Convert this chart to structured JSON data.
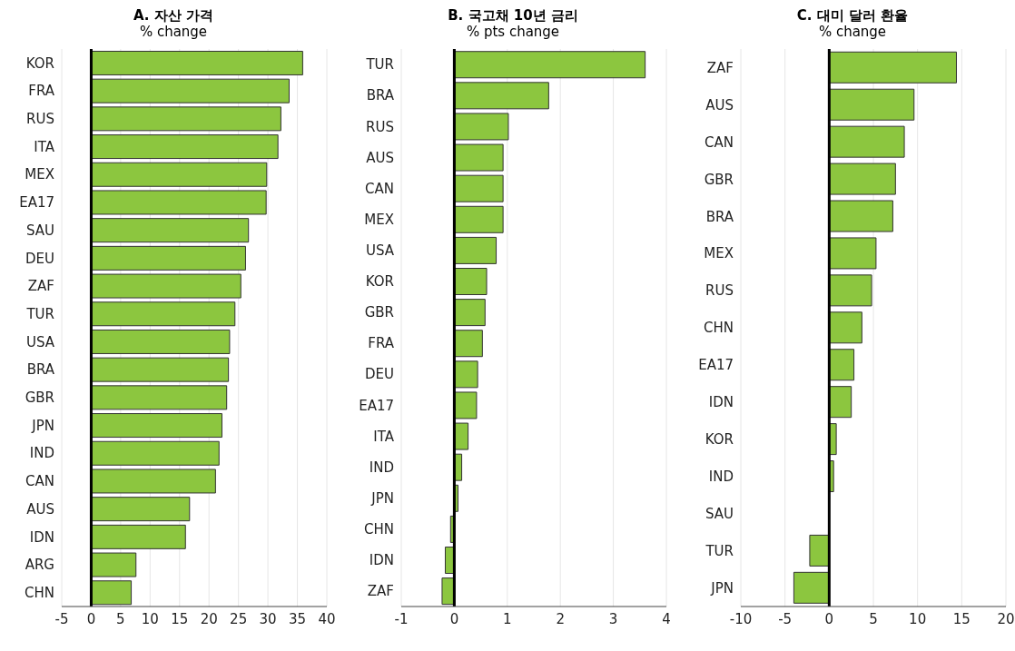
{
  "chart_data": [
    {
      "type": "bar",
      "orientation": "horizontal",
      "title": "A. 자산 가격",
      "subtitle": "% change",
      "categories": [
        "KOR",
        "FRA",
        "RUS",
        "ITA",
        "MEX",
        "EA17",
        "SAU",
        "DEU",
        "ZAF",
        "TUR",
        "USA",
        "BRA",
        "GBR",
        "JPN",
        "IND",
        "CAN",
        "AUS",
        "IDN",
        "ARG",
        "CHN"
      ],
      "values": [
        35.9,
        33.6,
        32.2,
        31.7,
        29.8,
        29.7,
        26.7,
        26.2,
        25.4,
        24.4,
        23.5,
        23.3,
        23,
        22.2,
        21.7,
        21.1,
        16.7,
        16,
        7.6,
        6.8
      ],
      "color": "#8cc63f",
      "xlim": [
        -5,
        40
      ],
      "xticks": [
        -5,
        0,
        5,
        10,
        15,
        20,
        25,
        30,
        35,
        40
      ],
      "grid": "x",
      "ref_lines": [
        {
          "axis": "x",
          "value": 0,
          "color": "#000000"
        }
      ]
    },
    {
      "type": "bar",
      "orientation": "horizontal",
      "title": "B. 국고채 10년 금리",
      "subtitle": "% pts change",
      "categories": [
        "TUR",
        "BRA",
        "RUS",
        "AUS",
        "CAN",
        "MEX",
        "USA",
        "KOR",
        "GBR",
        "FRA",
        "DEU",
        "EA17",
        "ITA",
        "IND",
        "JPN",
        "CHN",
        "IDN",
        "ZAF"
      ],
      "values": [
        3.6,
        1.78,
        1.02,
        0.92,
        0.92,
        0.92,
        0.79,
        0.61,
        0.58,
        0.53,
        0.44,
        0.42,
        0.26,
        0.14,
        0.07,
        -0.07,
        -0.17,
        -0.23
      ],
      "color": "#8cc63f",
      "xlim": [
        -1,
        4
      ],
      "xticks": [
        -1,
        0,
        1,
        2,
        3,
        4
      ],
      "grid": "x",
      "ref_lines": [
        {
          "axis": "x",
          "value": 0,
          "color": "#000000"
        }
      ]
    },
    {
      "type": "bar",
      "orientation": "horizontal",
      "title": "C. 대미 달러 환율",
      "subtitle": "% change",
      "categories": [
        "ZAF",
        "AUS",
        "CAN",
        "GBR",
        "BRA",
        "MEX",
        "RUS",
        "CHN",
        "EA17",
        "IDN",
        "KOR",
        "IND",
        "SAU",
        "TUR",
        "JPN"
      ],
      "values": [
        14.4,
        9.6,
        8.5,
        7.5,
        7.2,
        5.3,
        4.8,
        3.7,
        2.8,
        2.5,
        0.8,
        0.5,
        0,
        -2.2,
        -4
      ],
      "color": "#8cc63f",
      "xlim": [
        -10,
        20
      ],
      "xticks": [
        -10,
        -5,
        0,
        5,
        10,
        15,
        20
      ],
      "grid": "x",
      "ref_lines": [
        {
          "axis": "x",
          "value": 0,
          "color": "#000000"
        }
      ]
    }
  ]
}
